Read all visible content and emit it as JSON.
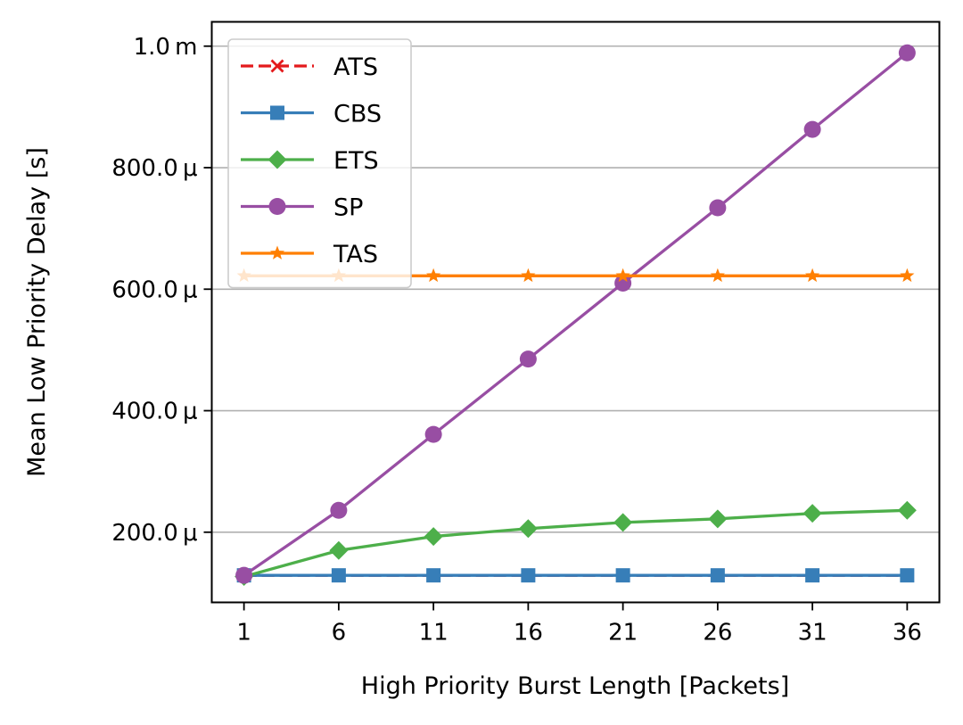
{
  "chart_data": {
    "type": "line",
    "title": "",
    "xlabel": "High Priority Burst Length [Packets]",
    "ylabel": "Mean Low Priority Delay [s]",
    "x": [
      1,
      6,
      11,
      16,
      21,
      26,
      31,
      36
    ],
    "xticks": [
      1,
      6,
      11,
      16,
      21,
      26,
      31,
      36
    ],
    "xtick_labels": [
      "1",
      "6",
      "11",
      "16",
      "21",
      "26",
      "31",
      "36"
    ],
    "xlim": [
      -0.7,
      37.7
    ],
    "ylim": [
      8.45e-05,
      0.00104
    ],
    "yticks": [
      0.0002,
      0.0004,
      0.0006,
      0.0008,
      0.001
    ],
    "ytick_labels": [
      "200.0 μ",
      "400.0 μ",
      "600.0 μ",
      "800.0 μ",
      "1.0 m"
    ],
    "grid": "y-major",
    "legend_position": "top-left",
    "series": [
      {
        "name": "ATS",
        "color": "#e41a1c",
        "marker": "x",
        "linestyle": "dashed",
        "values": [
          0.000129,
          0.000129,
          0.000129,
          0.000129,
          0.000129,
          0.000129,
          0.000129,
          0.000129
        ]
      },
      {
        "name": "CBS",
        "color": "#377eb8",
        "marker": "square",
        "linestyle": "solid",
        "values": [
          0.000129,
          0.000129,
          0.000129,
          0.000129,
          0.000129,
          0.000129,
          0.000129,
          0.000129
        ]
      },
      {
        "name": "ETS",
        "color": "#4daf4a",
        "marker": "diamond",
        "linestyle": "solid",
        "values": [
          0.000127,
          0.00017,
          0.000193,
          0.000206,
          0.000216,
          0.000222,
          0.000231,
          0.000236
        ]
      },
      {
        "name": "SP",
        "color": "#984ea3",
        "marker": "circle",
        "linestyle": "solid",
        "values": [
          0.000129,
          0.000236,
          0.000361,
          0.000485,
          0.00061,
          0.000734,
          0.000863,
          0.000989
        ]
      },
      {
        "name": "TAS",
        "color": "#ff7f00",
        "marker": "star",
        "linestyle": "solid",
        "values": [
          0.000622,
          0.000622,
          0.000622,
          0.000622,
          0.000622,
          0.000622,
          0.000622,
          0.000622
        ]
      }
    ]
  }
}
